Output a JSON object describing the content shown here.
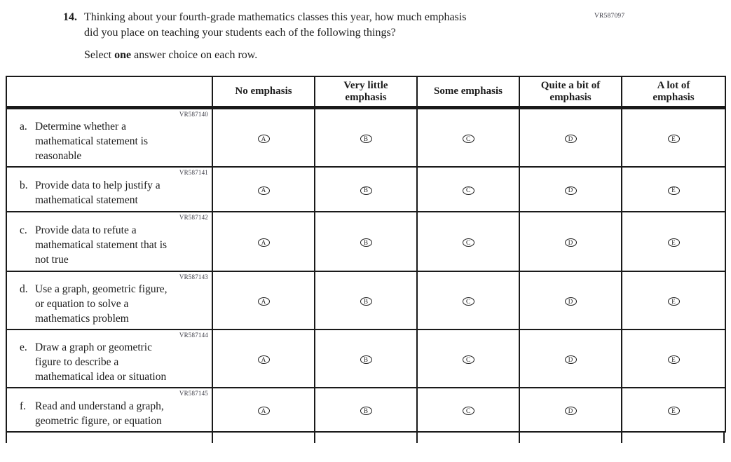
{
  "top_code": "VR587097",
  "question": {
    "number": "14.",
    "text": "Thinking about your fourth-grade mathematics classes this year, how much emphasis\ndid you place on teaching your students each of the following things?",
    "instruction": {
      "pre": "Select ",
      "bold": "one",
      "post": " answer choice on each row."
    }
  },
  "table": {
    "columns": [
      "No emphasis",
      "Very little\nemphasis",
      "Some emphasis",
      "Quite a bit of\nemphasis",
      "A lot of\nemphasis"
    ],
    "options": [
      "A",
      "B",
      "C",
      "D",
      "E"
    ],
    "rows": [
      {
        "vr": "VR587140",
        "prefix": "a.",
        "label": "Determine whether a\nmathematical statement is\nreasonable"
      },
      {
        "vr": "VR587141",
        "prefix": "b.",
        "label": "Provide data to help justify a\nmathematical statement"
      },
      {
        "vr": "VR587142",
        "prefix": "c.",
        "label": "Provide data to refute a\nmathematical statement that is\nnot true"
      },
      {
        "vr": "VR587143",
        "prefix": "d.",
        "label": "Use a graph, geometric figure,\nor equation to solve a\nmathematics problem"
      },
      {
        "vr": "VR587144",
        "prefix": "e.",
        "label": "Draw a graph or geometric\nfigure to describe a\nmathematical idea or situation"
      },
      {
        "vr": "VR587145",
        "prefix": "f.",
        "label": "Read and understand a graph,\ngeometric figure, or equation"
      }
    ]
  },
  "colors": {
    "text": "#1c1c1c",
    "border": "#1a1a1a",
    "vr_code": "#3c3c46",
    "background": "#ffffff"
  }
}
